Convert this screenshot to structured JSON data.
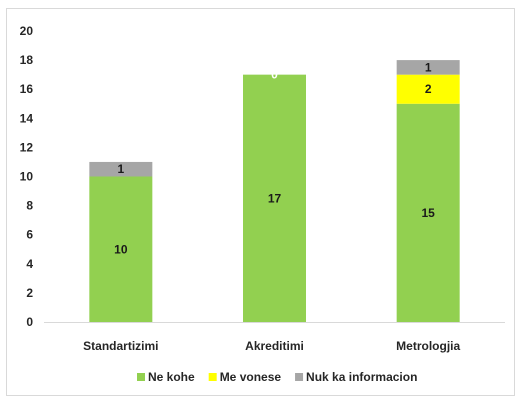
{
  "chart_data": {
    "type": "bar",
    "stacked": true,
    "categories": [
      "Standartizimi",
      "Akreditimi",
      "Metrologjia"
    ],
    "series": [
      {
        "name": "Ne kohe",
        "values": [
          10,
          17,
          15
        ],
        "color": "#92d050",
        "labels": [
          "10",
          "17",
          "15"
        ],
        "label_color": "#1a1a1a"
      },
      {
        "name": "Me vonese",
        "values": [
          0,
          0,
          2
        ],
        "color": "#ffff00",
        "labels": [
          null,
          "0",
          "2"
        ],
        "label_color": "#1a1a1a"
      },
      {
        "name": "Nuk ka informacion",
        "values": [
          1,
          0,
          1
        ],
        "color": "#a6a6a6",
        "labels": [
          "1",
          null,
          "1"
        ],
        "label_color": "#1a1a1a"
      }
    ],
    "ylim": [
      0,
      20
    ],
    "yticks": [
      "0",
      "2",
      "4",
      "6",
      "8",
      "10",
      "12",
      "14",
      "16",
      "18",
      "20"
    ],
    "grid": false,
    "legend_position": "bottom"
  }
}
